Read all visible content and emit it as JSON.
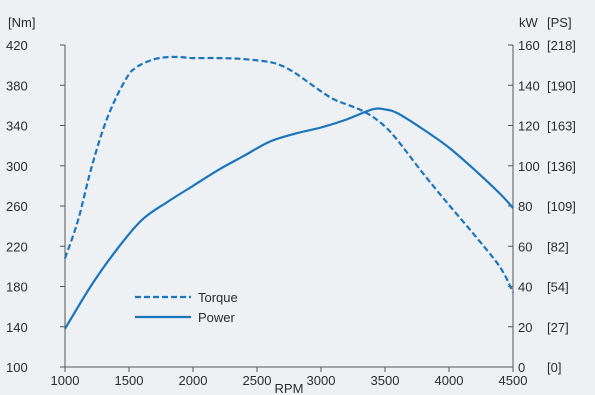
{
  "chart_data": {
    "type": "line",
    "xlabel": "RPM",
    "xlim": [
      1000,
      4500
    ],
    "x_ticks": [
      1000,
      1500,
      2000,
      2500,
      3000,
      3500,
      4000,
      4500
    ],
    "left_axis": {
      "unit_label": "[Nm]",
      "lim": [
        100,
        420
      ],
      "ticks": [
        100,
        140,
        180,
        220,
        260,
        300,
        340,
        380,
        420
      ]
    },
    "right_axis": {
      "unit_label_kw": "kW",
      "unit_label_ps": "[PS]",
      "lim": [
        0,
        160
      ],
      "ticks_kw": [
        0,
        20,
        40,
        60,
        80,
        100,
        120,
        140,
        160
      ],
      "ticks_ps": [
        "[0]",
        "[27]",
        "[54]",
        "[82]",
        "[109]",
        "[136]",
        "[163]",
        "[190]",
        "[218]"
      ]
    },
    "series": [
      {
        "name": "Torque",
        "axis": "left",
        "style": "dashed",
        "color": "#1b75bc",
        "x": [
          1000,
          1100,
          1200,
          1300,
          1400,
          1500,
          1550,
          1600,
          1700,
          1800,
          1900,
          2000,
          2200,
          2400,
          2600,
          2700,
          2800,
          2900,
          3000,
          3100,
          3200,
          3300,
          3400,
          3500,
          3600,
          3800,
          4000,
          4200,
          4400,
          4500
        ],
        "y": [
          208,
          245,
          295,
          337,
          368,
          391,
          397,
          401,
          406,
          408,
          408,
          407,
          407,
          406,
          403,
          399,
          392,
          383,
          374,
          366,
          361,
          356,
          349,
          339,
          325,
          292,
          261,
          231,
          199,
          174
        ]
      },
      {
        "name": "Power",
        "axis": "right",
        "style": "solid",
        "color": "#1b75bc",
        "x": [
          1000,
          1200,
          1400,
          1600,
          1800,
          2000,
          2200,
          2400,
          2600,
          2800,
          3000,
          3200,
          3400,
          3500,
          3600,
          3800,
          4000,
          4200,
          4400,
          4500
        ],
        "y": [
          19,
          40,
          58,
          73,
          82,
          90,
          98,
          105,
          112,
          116,
          119,
          123,
          128,
          128,
          126,
          118,
          109,
          98,
          86,
          79
        ]
      }
    ],
    "legend": [
      {
        "label": "Torque",
        "style": "dashed"
      },
      {
        "label": "Power",
        "style": "solid"
      }
    ],
    "legend_position": "bottom-left",
    "grid": false
  }
}
